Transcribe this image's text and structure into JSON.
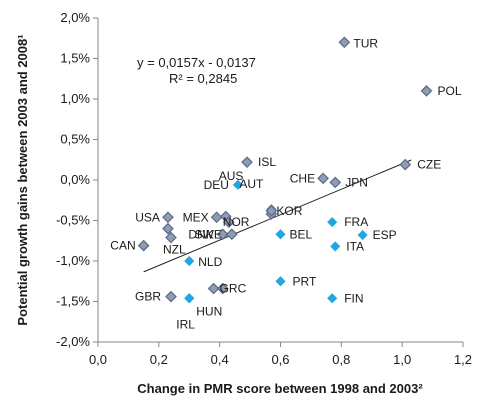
{
  "chart_data": {
    "type": "scatter",
    "title": "",
    "xlabel": "Change in PMR score between 1998 and 2003²",
    "ylabel": "Potential growth gains between 2003 and 2008¹",
    "xlim": [
      0,
      1.2
    ],
    "ylim": [
      -2.0,
      2.0
    ],
    "x_ticks": [
      0,
      0.2,
      0.4,
      0.6,
      0.8,
      1.0,
      1.2
    ],
    "x_tick_labels": [
      "0,0",
      "0,2",
      "0,4",
      "0,6",
      "0,8",
      "1,0",
      "1,2"
    ],
    "y_ticks": [
      2.0,
      1.5,
      1.0,
      0.5,
      0.0,
      -0.5,
      -1.0,
      -1.5,
      -2.0
    ],
    "y_tick_labels": [
      "2,0%",
      "1,5%",
      "1,0%",
      "0,5%",
      "0,0%",
      "-0,5%",
      "-1,0%",
      "-1,5%",
      "-2,0%"
    ],
    "grid": false,
    "trendline": {
      "equation": "y = 0,0157x - 0,0137",
      "r_squared": "R² = 0,2845",
      "x_range": [
        0.15,
        1.03
      ],
      "slope_pct": 1.57,
      "intercept_pct": -1.37,
      "color": "#222222"
    },
    "marker_colors": {
      "diamond_grey": "#8f9cb3",
      "diamond_outline": "#5b6a86",
      "diamond_blue": "#21a6e0"
    },
    "points": [
      {
        "label": "TUR",
        "x": 0.81,
        "y": 1.7,
        "style": "grey"
      },
      {
        "label": "POL",
        "x": 1.08,
        "y": 1.1,
        "style": "grey"
      },
      {
        "label": "CZE",
        "x": 1.01,
        "y": 0.19,
        "style": "grey"
      },
      {
        "label": "ISL",
        "x": 0.49,
        "y": 0.22,
        "style": "grey"
      },
      {
        "label": "CHE",
        "x": 0.74,
        "y": 0.02,
        "style": "grey"
      },
      {
        "label": "JPN",
        "x": 0.78,
        "y": -0.03,
        "style": "grey"
      },
      {
        "label": "DEU",
        "x": 0.46,
        "y": -0.06,
        "style": "blue"
      },
      {
        "label": "AUT",
        "x": 0.57,
        "y": -0.36,
        "style": "blue"
      },
      {
        "label": "AUS",
        "x": 0.57,
        "y": -0.42,
        "style": "grey"
      },
      {
        "label": "KOR",
        "x": 0.57,
        "y": -0.38,
        "style": "grey"
      },
      {
        "label": "USA",
        "x": 0.23,
        "y": -0.46,
        "style": "grey"
      },
      {
        "label": "",
        "x": 0.23,
        "y": -0.6,
        "style": "grey"
      },
      {
        "label": "MEX",
        "x": 0.39,
        "y": -0.46,
        "style": "grey"
      },
      {
        "label": "",
        "x": 0.42,
        "y": -0.45,
        "style": "grey"
      },
      {
        "label": "NOR",
        "x": 0.43,
        "y": -0.52,
        "style": "grey"
      },
      {
        "label": "FRA",
        "x": 0.77,
        "y": -0.52,
        "style": "blue"
      },
      {
        "label": "DNK",
        "x": 0.41,
        "y": -0.67,
        "style": "grey"
      },
      {
        "label": "SWE",
        "x": 0.44,
        "y": -0.67,
        "style": "grey"
      },
      {
        "label": "BEL",
        "x": 0.6,
        "y": -0.67,
        "style": "blue"
      },
      {
        "label": "ESP",
        "x": 0.87,
        "y": -0.68,
        "style": "blue"
      },
      {
        "label": "CAN",
        "x": 0.15,
        "y": -0.81,
        "style": "grey"
      },
      {
        "label": "ITA",
        "x": 0.78,
        "y": -0.82,
        "style": "blue"
      },
      {
        "label": "NZL",
        "x": 0.24,
        "y": -0.71,
        "style": "grey"
      },
      {
        "label": "NLD",
        "x": 0.3,
        "y": -1.0,
        "style": "blue"
      },
      {
        "label": "PRT",
        "x": 0.6,
        "y": -1.25,
        "style": "blue"
      },
      {
        "label": "GRC",
        "x": 0.38,
        "y": -1.34,
        "style": "grey"
      },
      {
        "label": "",
        "x": 0.41,
        "y": -1.34,
        "style": "grey"
      },
      {
        "label": "GBR",
        "x": 0.24,
        "y": -1.44,
        "style": "grey"
      },
      {
        "label": "HUN",
        "x": 0.3,
        "y": -1.46,
        "style": "blue"
      },
      {
        "label": "IRL",
        "x": 0.3,
        "y": -1.46,
        "style": "blue"
      },
      {
        "label": "FIN",
        "x": 0.77,
        "y": -1.46,
        "style": "blue"
      }
    ]
  }
}
